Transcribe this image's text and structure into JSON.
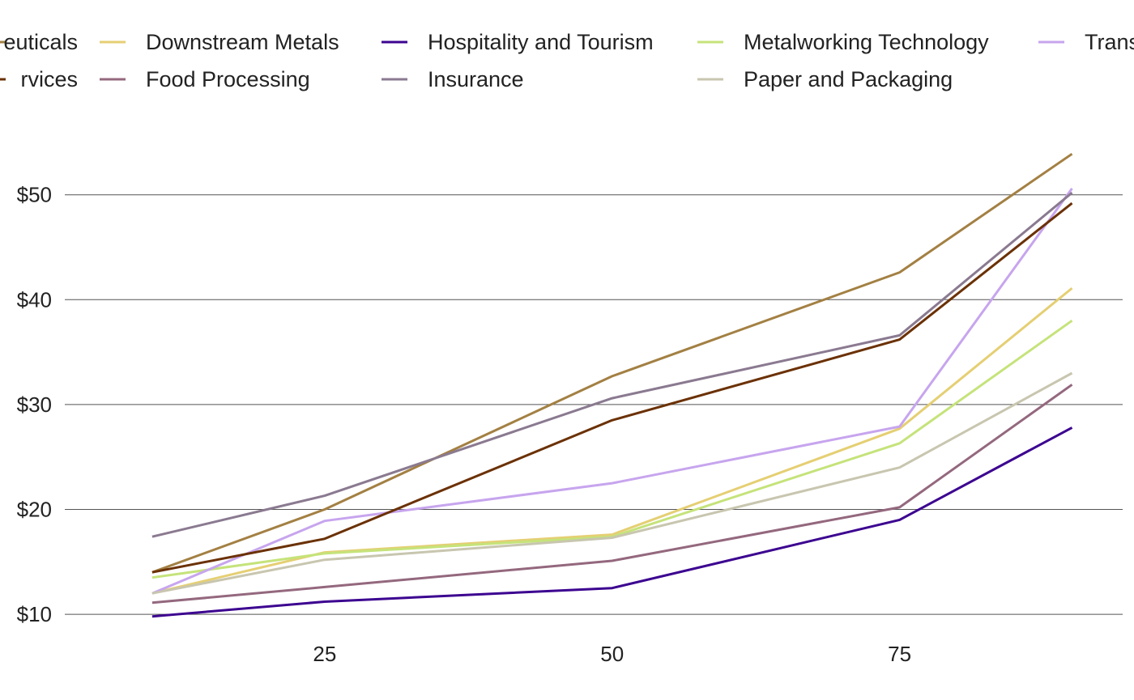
{
  "chart_data": {
    "type": "line",
    "title": "",
    "xlabel": "",
    "ylabel": "",
    "x": [
      10,
      25,
      50,
      75,
      90
    ],
    "xticks": [
      25,
      50,
      75
    ],
    "xtick_labels": [
      "25",
      "50",
      "75"
    ],
    "yticks": [
      10,
      20,
      30,
      40,
      50
    ],
    "ytick_labels": [
      "$10",
      "$20",
      "$30",
      "$40",
      "$50"
    ],
    "ylim": [
      8,
      57
    ],
    "xlim": [
      2.4,
      94.4
    ],
    "grid": "horizontal",
    "legend_placement": "top",
    "series": [
      {
        "name": "Pharmaceuticals",
        "color": "#a38043",
        "values": [
          14.0,
          20.0,
          32.7,
          42.6,
          53.9
        ],
        "legend_text": "euticals",
        "legend_row": 0,
        "legend_col": 0
      },
      {
        "name": "Downstream Metals",
        "color": "#e5cf73",
        "values": [
          12.0,
          15.9,
          17.6,
          27.7,
          41.1
        ],
        "legend_text": "Downstream Metals",
        "legend_row": 0,
        "legend_col": 1
      },
      {
        "name": "Hospitality and Tourism",
        "color": "#3c0490",
        "values": [
          9.8,
          11.2,
          12.5,
          19.0,
          27.8
        ],
        "legend_text": "Hospitality and Tourism",
        "legend_row": 0,
        "legend_col": 2
      },
      {
        "name": "Metalworking Technology",
        "color": "#c5e37a",
        "values": [
          13.5,
          15.8,
          17.4,
          26.3,
          38.0
        ],
        "legend_text": "Metalworking Technology",
        "legend_row": 0,
        "legend_col": 3
      },
      {
        "name": "Transportation",
        "color": "#c7a5ee",
        "values": [
          12.0,
          18.9,
          22.5,
          27.9,
          50.6
        ],
        "legend_text": "Trans",
        "legend_row": 0,
        "legend_col": 4
      },
      {
        "name": "Financial Services",
        "color": "#6b3105",
        "values": [
          14.0,
          17.2,
          28.5,
          36.2,
          49.2
        ],
        "legend_text": "rvices",
        "legend_row": 1,
        "legend_col": 0
      },
      {
        "name": "Food Processing",
        "color": "#94687e",
        "values": [
          11.1,
          12.6,
          15.1,
          20.2,
          31.9
        ],
        "legend_text": "Food Processing",
        "legend_row": 1,
        "legend_col": 1
      },
      {
        "name": "Insurance",
        "color": "#8a7a90",
        "values": [
          17.4,
          21.3,
          30.6,
          36.6,
          50.2
        ],
        "legend_text": "Insurance",
        "legend_row": 1,
        "legend_col": 2
      },
      {
        "name": "Paper and Packaging",
        "color": "#c8c6af",
        "values": [
          12.0,
          15.2,
          17.3,
          24.0,
          33.0
        ],
        "legend_text": "Paper and Packaging",
        "legend_row": 1,
        "legend_col": 3
      }
    ],
    "colors": {
      "grid": "#555555",
      "text": "#222222",
      "background": "#ffffff"
    }
  }
}
